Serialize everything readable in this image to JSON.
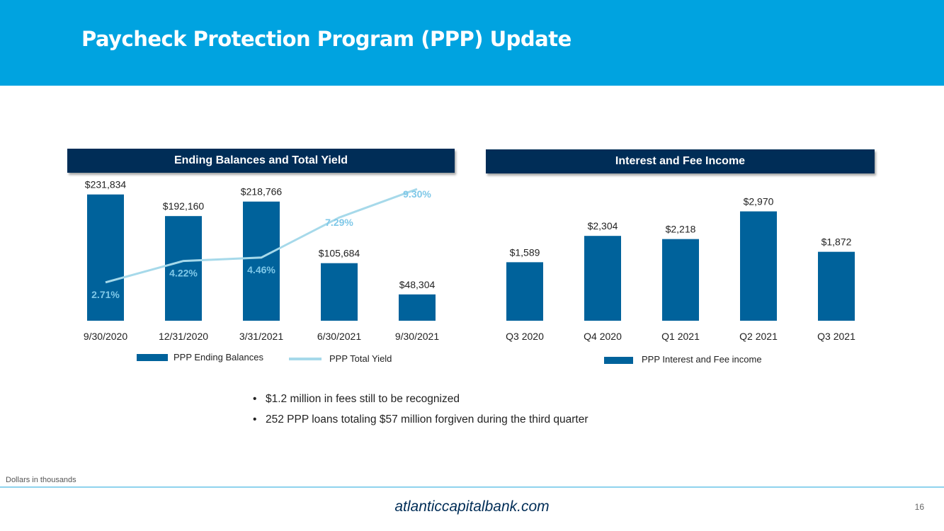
{
  "header": {
    "title": "Paycheck Protection Program (PPP) Update"
  },
  "colors": {
    "header_bg": "#00a3e0",
    "banner_bg": "#002d57",
    "bar": "#00629b",
    "line": "#a6d9ea",
    "yield_label": "#7fc8e8"
  },
  "chart_data": [
    {
      "type": "bar+line",
      "title": "Ending Balances and Total Yield",
      "categories": [
        "9/30/2020",
        "12/31/2020",
        "3/31/2021",
        "6/30/2021",
        "9/30/2021"
      ],
      "series": [
        {
          "name": "PPP Ending Balances",
          "kind": "bar",
          "values": [
            231834,
            192160,
            218766,
            105684,
            48304
          ],
          "labels": [
            "$231,834",
            "$192,160",
            "$218,766",
            "$105,684",
            "$48,304"
          ]
        },
        {
          "name": "PPP Total Yield",
          "kind": "line",
          "values": [
            2.71,
            4.22,
            4.46,
            7.29,
            9.3
          ],
          "labels": [
            "2.71%",
            "4.22%",
            "4.46%",
            "7.29%",
            "9.30%"
          ]
        }
      ],
      "ylim_bar": [
        0,
        260000
      ],
      "ylim_line": [
        0,
        10
      ]
    },
    {
      "type": "bar",
      "title": "Interest and Fee Income",
      "categories": [
        "Q3 2020",
        "Q4 2020",
        "Q1 2021",
        "Q2 2021",
        "Q3 2021"
      ],
      "series": [
        {
          "name": "PPP Interest and Fee income",
          "kind": "bar",
          "values": [
            1589,
            2304,
            2218,
            2970,
            1872
          ],
          "labels": [
            "$1,589",
            "$2,304",
            "$2,218",
            "$2,970",
            "$1,872"
          ]
        }
      ],
      "ylim": [
        0,
        3000
      ]
    }
  ],
  "bullets": [
    "$1.2 million in fees still to be recognized",
    "252 PPP loans totaling $57 million forgiven during the third quarter"
  ],
  "bullet_char": "•",
  "footnote": "Dollars in thousands",
  "footer": {
    "url": "atlanticcapitalbank.com",
    "page": "16"
  }
}
